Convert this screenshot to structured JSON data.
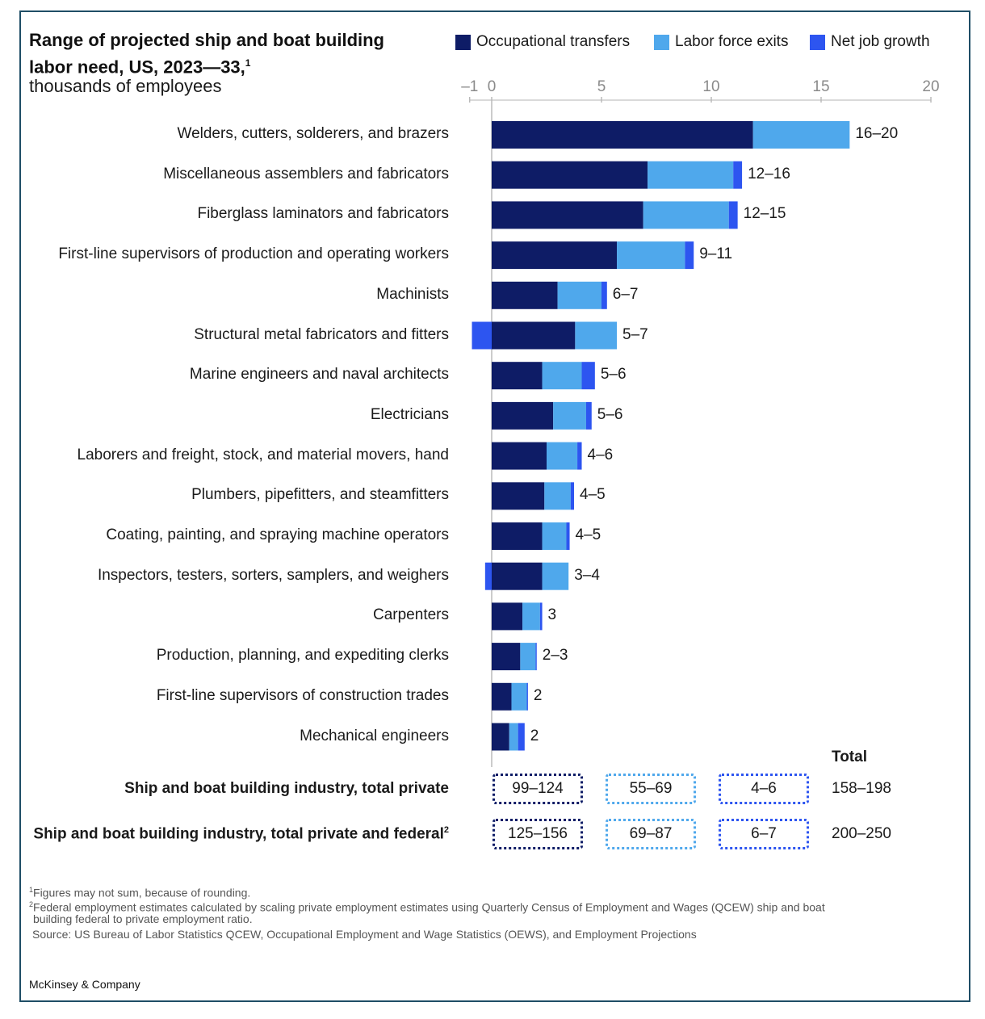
{
  "header": {
    "title_line1": "Range of projected ship and boat building",
    "title_line2": "labor need, US, 2023—33,",
    "title_sup": "1",
    "subtitle": "thousands of employees"
  },
  "legend": [
    {
      "label": "Occupational transfers",
      "color": "#0e1c66"
    },
    {
      "label": "Labor force exits",
      "color": "#4fa8ec"
    },
    {
      "label": "Net job growth",
      "color": "#2d55f0"
    }
  ],
  "chart_data": {
    "type": "bar",
    "orientation": "horizontal",
    "stacked": true,
    "xlim": [
      -1,
      20
    ],
    "x_ticks": [
      -1,
      0,
      5,
      10,
      15,
      20
    ],
    "x_tick_labels": [
      "–1",
      "0",
      "5",
      "10",
      "15",
      "20"
    ],
    "grid": false,
    "legend_position": "top-right",
    "categories": [
      "Welders, cutters, solderers, and brazers",
      "Miscellaneous assemblers and fabricators",
      "Fiberglass laminators and fabricators",
      "First-line supervisors of production and operating workers",
      "Machinists",
      "Structural metal fabricators and fitters",
      "Marine engineers and naval architects",
      "Electricians",
      "Laborers and freight, stock, and material movers, hand",
      "Plumbers, pipefitters, and steamfitters",
      "Coating, painting, and spraying machine operators",
      "Inspectors, testers, sorters, samplers, and weighers",
      "Carpenters",
      "Production, planning, and expediting clerks",
      "First-line supervisors of construction trades",
      "Mechanical engineers"
    ],
    "series": [
      {
        "name": "Occupational transfers",
        "color": "#0e1c66",
        "values": [
          11.9,
          7.1,
          6.9,
          5.7,
          3.0,
          3.8,
          2.3,
          2.8,
          2.5,
          2.4,
          2.3,
          2.3,
          1.4,
          1.3,
          0.9,
          0.8
        ]
      },
      {
        "name": "Labor force exits",
        "color": "#4fa8ec",
        "values": [
          4.4,
          3.9,
          3.9,
          3.1,
          2.0,
          1.9,
          1.8,
          1.5,
          1.4,
          1.2,
          1.1,
          1.2,
          0.8,
          0.7,
          0.7,
          0.4
        ]
      },
      {
        "name": "Net job growth",
        "color": "#2d55f0",
        "values": [
          0.0,
          0.4,
          0.4,
          0.4,
          0.25,
          -0.9,
          0.6,
          0.25,
          0.2,
          0.15,
          0.15,
          -0.3,
          0.1,
          0.05,
          0.05,
          0.3
        ]
      }
    ],
    "range_labels": [
      "16–20",
      "12–16",
      "12–15",
      "9–11",
      "6–7",
      "5–7",
      "5–6",
      "5–6",
      "4–6",
      "4–5",
      "4–5",
      "3–4",
      "3",
      "2–3",
      "2",
      "2"
    ]
  },
  "totals": {
    "header": "Total",
    "rows": [
      {
        "label": "Ship and boat building industry, total private",
        "sup": "",
        "transfers": "99–124",
        "exits": "55–69",
        "growth": "4–6",
        "total": "158–198"
      },
      {
        "label": "Ship and boat building industry, total private and federal",
        "sup": "2",
        "transfers": "125–156",
        "exits": "69–87",
        "growth": "6–7",
        "total": "200–250"
      }
    ]
  },
  "footnotes": {
    "note1_sup": "1",
    "note1": "Figures may not sum, because of rounding.",
    "note2_sup": "2",
    "note2_line1": "Federal employment estimates calculated by scaling private employment estimates using Quarterly Census of Employment and Wages (QCEW) ship and boat",
    "note2_line2": "building federal to private employment ratio.",
    "source": "Source: US Bureau of Labor Statistics QCEW, Occupational Employment and Wage Statistics (OEWS), and Employment Projections"
  },
  "brand": "McKinsey & Company"
}
